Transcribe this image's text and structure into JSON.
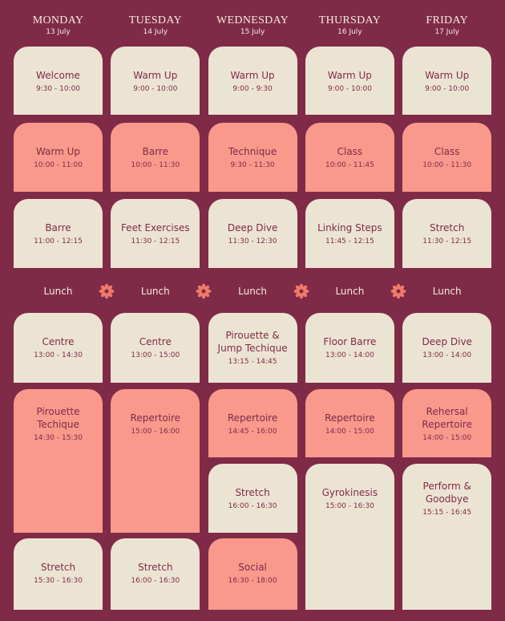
{
  "days": [
    {
      "name": "MONDAY",
      "date": "13 July",
      "sessions": [
        {
          "title": "Welcome",
          "time": "9:30 - 10:00"
        },
        {
          "title": "Warm Up",
          "time": "10:00 - 11:00"
        },
        {
          "title": "Barre",
          "time": "11:00 - 12:15"
        },
        {
          "title": "Centre",
          "time": "13:00 - 14:30"
        },
        {
          "title": "Pirouette Techique",
          "time": "14:30 - 15:30"
        },
        {
          "title": "Stretch",
          "time": "15:30 - 16:30"
        }
      ]
    },
    {
      "name": "TUESDAY",
      "date": "14 July",
      "sessions": [
        {
          "title": "Warm Up",
          "time": "9:00 - 10:00"
        },
        {
          "title": "Barre",
          "time": "10:00 - 11:30"
        },
        {
          "title": "Feet Exercises",
          "time": "11:30 - 12:15"
        },
        {
          "title": "Centre",
          "time": "13:00 - 15:00"
        },
        {
          "title": "Repertoire",
          "time": "15:00 - 16:00"
        },
        {
          "title": "Stretch",
          "time": "16:00 - 16:30"
        }
      ]
    },
    {
      "name": "WEDNESDAY",
      "date": "15 July",
      "sessions": [
        {
          "title": "Warm Up",
          "time": "9:00 - 9:30"
        },
        {
          "title": "Technique",
          "time": "9:30 - 11:30"
        },
        {
          "title": "Deep Dive",
          "time": "11:30 - 12:30"
        },
        {
          "title": "Pirouette & Jump Techique",
          "time": "13:15 - 14:45"
        },
        {
          "title": "Repertoire",
          "time": "14:45 - 16:00"
        },
        {
          "title": "Stretch",
          "time": "16:00 - 16:30"
        },
        {
          "title": "Social",
          "time": "16:30 - 18:00"
        }
      ]
    },
    {
      "name": "THURSDAY",
      "date": "16 July",
      "sessions": [
        {
          "title": "Warm Up",
          "time": "9:00 - 10:00"
        },
        {
          "title": "Class",
          "time": "10:00 - 11:45"
        },
        {
          "title": "Linking Steps",
          "time": "11:45 - 12:15"
        },
        {
          "title": "Floor Barre",
          "time": "13:00 - 14:00"
        },
        {
          "title": "Repertoire",
          "time": "14:00 - 15:00"
        },
        {
          "title": "Gyrokinesis",
          "time": "15:00 - 16:30"
        }
      ]
    },
    {
      "name": "FRIDAY",
      "date": "17 July",
      "sessions": [
        {
          "title": "Warm Up",
          "time": "9:00 - 10:00"
        },
        {
          "title": "Class",
          "time": "10:00 - 11:30"
        },
        {
          "title": "Stretch",
          "time": "11:30 - 12:15"
        },
        {
          "title": "Deep Dive",
          "time": "13:00 - 14:00"
        },
        {
          "title": "Rehersal Repertoire",
          "time": "14:00 - 15:00"
        },
        {
          "title": "Perform & Goodbye",
          "time": "15:15 - 16:45"
        }
      ]
    }
  ],
  "lunch": [
    "Lunch",
    "Lunch",
    "Lunch",
    "Lunch",
    "Lunch"
  ]
}
